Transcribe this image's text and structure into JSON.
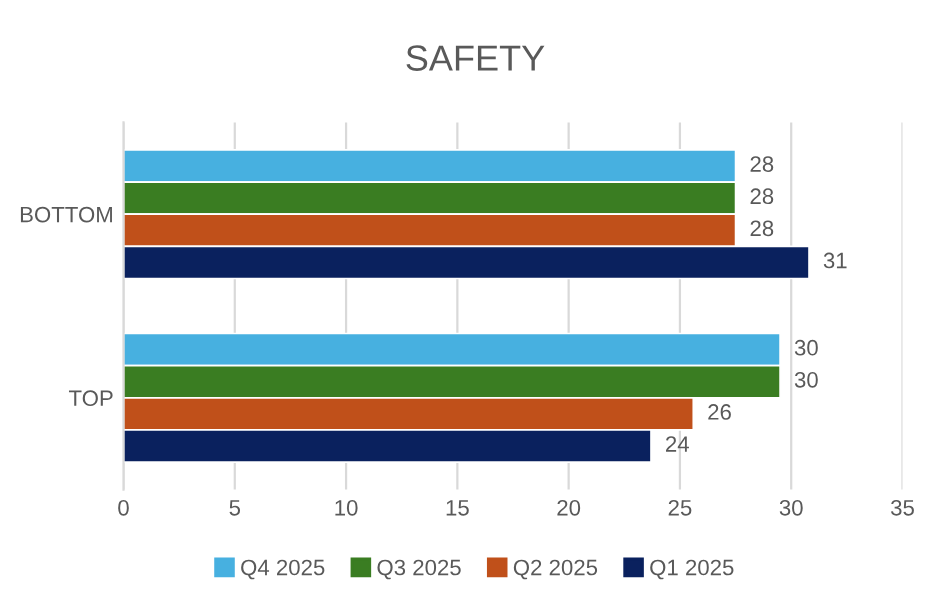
{
  "chart_data": {
    "type": "bar",
    "orientation": "horizontal",
    "title": "SAFETY",
    "categories": [
      "BOTTOM",
      "TOP"
    ],
    "series": [
      {
        "name": "Q4 2025",
        "color": "#47b0e0",
        "values": [
          27.5,
          29.5
        ],
        "value_labels": [
          "28",
          "30"
        ]
      },
      {
        "name": "Q3 2025",
        "color": "#3a7d22",
        "values": [
          27.5,
          29.5
        ],
        "value_labels": [
          "28",
          "30"
        ]
      },
      {
        "name": "Q2 2025",
        "color": "#c0501a",
        "values": [
          27.5,
          25.6
        ],
        "value_labels": [
          "28",
          "26"
        ]
      },
      {
        "name": "Q1 2025",
        "color": "#0a215e",
        "values": [
          30.8,
          23.7
        ],
        "value_labels": [
          "31",
          "24"
        ]
      }
    ],
    "xlim": [
      0,
      35
    ],
    "xticks": [
      0,
      5,
      10,
      15,
      20,
      25,
      30,
      35
    ],
    "grid": "x",
    "legend": "bottom"
  }
}
